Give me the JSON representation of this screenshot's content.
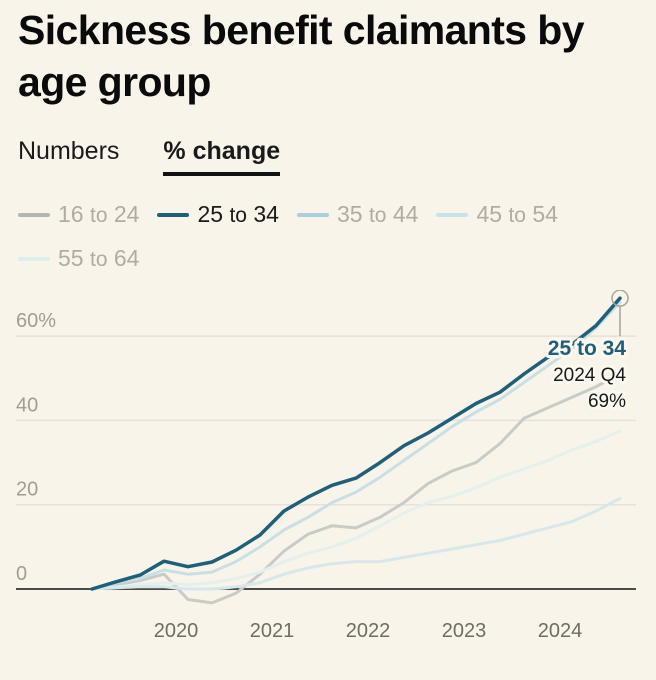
{
  "title": "Sickness benefit claimants by age group",
  "tabs": [
    {
      "label": "Numbers",
      "active": false
    },
    {
      "label": "% change",
      "active": true
    }
  ],
  "colors": {
    "background": "#f8f4ea",
    "selected": "#1f5f7a",
    "gridline": "#e6e2d9",
    "baseline": "#111111"
  },
  "legend": [
    {
      "num1": "16",
      "sep": "to",
      "num2": "24",
      "color": "#b3b7b3",
      "active": false
    },
    {
      "num1": "25",
      "sep": "to",
      "num2": "34",
      "color": "#1f5f7a",
      "active": true
    },
    {
      "num1": "35",
      "sep": "to",
      "num2": "44",
      "color": "#a9d0dc",
      "active": false
    },
    {
      "num1": "45",
      "sep": "to",
      "num2": "54",
      "color": "#c6e3ea",
      "active": false
    },
    {
      "num1": "55",
      "sep": "to",
      "num2": "64",
      "color": "#dcefec",
      "active": false
    }
  ],
  "chart_data": {
    "type": "line",
    "title": "Sickness benefit claimants by age group",
    "xlabel": "",
    "ylabel": "% change",
    "x_start": "2019 Q2",
    "x_end": "2024 Q4",
    "x": [
      "2019 Q2",
      "2019 Q3",
      "2019 Q4",
      "2020 Q1",
      "2020 Q2",
      "2020 Q3",
      "2020 Q4",
      "2021 Q1",
      "2021 Q2",
      "2021 Q3",
      "2021 Q4",
      "2022 Q1",
      "2022 Q2",
      "2022 Q3",
      "2022 Q4",
      "2023 Q1",
      "2023 Q2",
      "2023 Q3",
      "2023 Q4",
      "2024 Q1",
      "2024 Q2",
      "2024 Q3",
      "2024 Q4"
    ],
    "x_ticks": [
      "2020",
      "2021",
      "2022",
      "2023",
      "2024"
    ],
    "y_ticks": [
      {
        "value": 0,
        "label": "0"
      },
      {
        "value": 20,
        "label": "20"
      },
      {
        "value": 40,
        "label": "40"
      },
      {
        "value": 60,
        "label": "60%"
      }
    ],
    "ylim": [
      -5,
      70
    ],
    "grid": true,
    "legend_position": "top-left",
    "series": [
      {
        "name": "16 to 24",
        "color": "#c9ccc6",
        "values": [
          0,
          1.0,
          2.0,
          3.5,
          -2.5,
          -3.3,
          -1.0,
          3.5,
          9.0,
          13.0,
          15.0,
          14.5,
          17.0,
          20.5,
          25.0,
          28.0,
          30.0,
          34.5,
          40.5,
          43.0,
          45.5,
          48.0,
          51.0
        ]
      },
      {
        "name": "55 to 64",
        "color": "#e4f0ec",
        "values": [
          0,
          0.5,
          1.0,
          1.5,
          1.0,
          1.5,
          2.5,
          4.0,
          6.5,
          8.5,
          10.0,
          12.0,
          15.0,
          18.0,
          20.5,
          22.0,
          24.0,
          26.5,
          28.5,
          30.5,
          33.0,
          35.0,
          37.5
        ]
      },
      {
        "name": "45 to 54",
        "color": "#d6e8ea",
        "values": [
          0,
          0.3,
          0.5,
          0.5,
          0,
          0,
          0.5,
          1.5,
          3.5,
          5.0,
          6.0,
          6.5,
          6.5,
          7.5,
          8.5,
          9.5,
          10.5,
          11.5,
          13.0,
          14.5,
          16.0,
          18.5,
          21.5
        ]
      },
      {
        "name": "35 to 44",
        "color": "#c8dfe4",
        "values": [
          0,
          1.5,
          2.5,
          4.5,
          3.5,
          4.0,
          6.5,
          10.0,
          14.0,
          17.0,
          20.5,
          23.0,
          26.5,
          30.5,
          34.5,
          38.5,
          42.0,
          45.0,
          49.0,
          53.0,
          57.0,
          62.0,
          68.0
        ]
      },
      {
        "name": "25 to 34",
        "color": "#1f5f7a",
        "values": [
          0,
          1.7,
          3.3,
          6.6,
          5.3,
          6.4,
          9.2,
          12.8,
          18.5,
          21.8,
          24.6,
          26.3,
          30.0,
          34.0,
          37.0,
          40.5,
          44.0,
          46.7,
          51.0,
          55.0,
          58.0,
          62.5,
          69.0
        ]
      }
    ],
    "annotation": {
      "series": "25 to 34",
      "period": "2024 Q4",
      "value_label": "69%"
    }
  }
}
